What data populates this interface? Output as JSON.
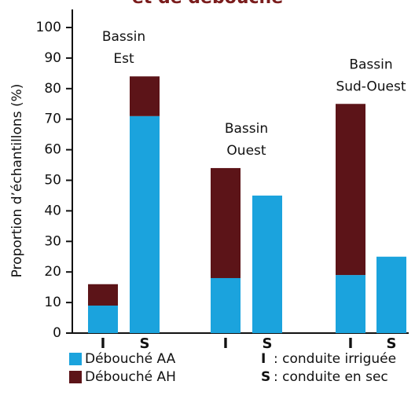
{
  "chart_data": {
    "type": "bar",
    "stacked": true,
    "title": "et de débouché",
    "ylabel": "Proportion d’échantillons (%)",
    "categories": [
      "I",
      "S",
      "I",
      "S",
      "I",
      "S"
    ],
    "groups": [
      [
        "Bassin",
        "Est"
      ],
      [
        "Bassin",
        "Ouest"
      ],
      [
        "Bassin",
        "Sud-Ouest"
      ]
    ],
    "series": [
      {
        "name": "Débouché AA",
        "color": "#1ba3dd",
        "values": [
          9,
          71,
          18,
          45,
          19,
          25
        ]
      },
      {
        "name": "Débouché AH",
        "color": "#5c1418",
        "values": [
          7,
          13,
          36,
          0,
          56,
          0
        ]
      }
    ],
    "notes": [
      {
        "key": "I",
        "text": ": conduite irriguée"
      },
      {
        "key": "S",
        "text": ": conduite en sec"
      }
    ],
    "ylim": [
      0,
      100
    ],
    "yticks": [
      0,
      10,
      20,
      30,
      40,
      50,
      60,
      70,
      80,
      90,
      100
    ]
  }
}
